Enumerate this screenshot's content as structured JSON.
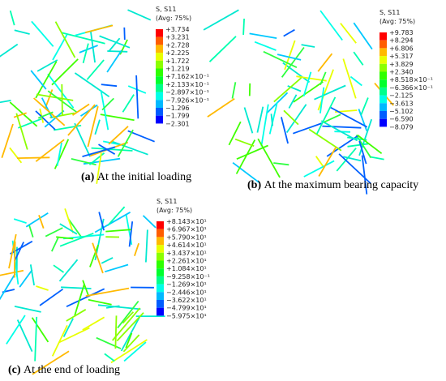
{
  "panels": [
    {
      "legend": {
        "title": "S, S11",
        "subtitle": "(Avg: 75%)",
        "labels": [
          "+3.734",
          "+3.231",
          "+2.728",
          "+2.225",
          "+1.722",
          "+1.219",
          "+7.162×10⁻¹",
          "+2.133×10⁻¹",
          "−2.897×10⁻¹",
          "−7.926×10⁻¹",
          "−1.296",
          "−1.799",
          "−2.301"
        ]
      },
      "caption": {
        "label": "(a)",
        "text": "At the initial loading"
      }
    },
    {
      "legend": {
        "title": "S, S11",
        "subtitle": "(Avg: 75%)",
        "labels": [
          "+9.783",
          "+8.294",
          "+6.806",
          "+5.317",
          "+3.829",
          "+2.340",
          "+8.518×10⁻¹",
          "−6.366×10⁻¹",
          "−2.125",
          "−3.613",
          "−5.102",
          "−6.590",
          "−8.079"
        ]
      },
      "caption": {
        "label": "(b)",
        "text": "At the maximum bearing capacity"
      }
    },
    {
      "legend": {
        "title": "S, S11",
        "subtitle": "(Avg: 75%)",
        "labels": [
          "+8.143×10¹",
          "+6.967×10¹",
          "+5.790×10¹",
          "+4.614×10¹",
          "+3.437×10¹",
          "+2.261×10¹",
          "+1.084×10¹",
          "−9.258×10⁻¹",
          "−1.269×10¹",
          "−2.446×10¹",
          "−3.622×10¹",
          "−4.799×10¹",
          "−5.975×10¹"
        ]
      },
      "caption": {
        "label": "(c)",
        "text": "At the end of loading"
      }
    }
  ]
}
